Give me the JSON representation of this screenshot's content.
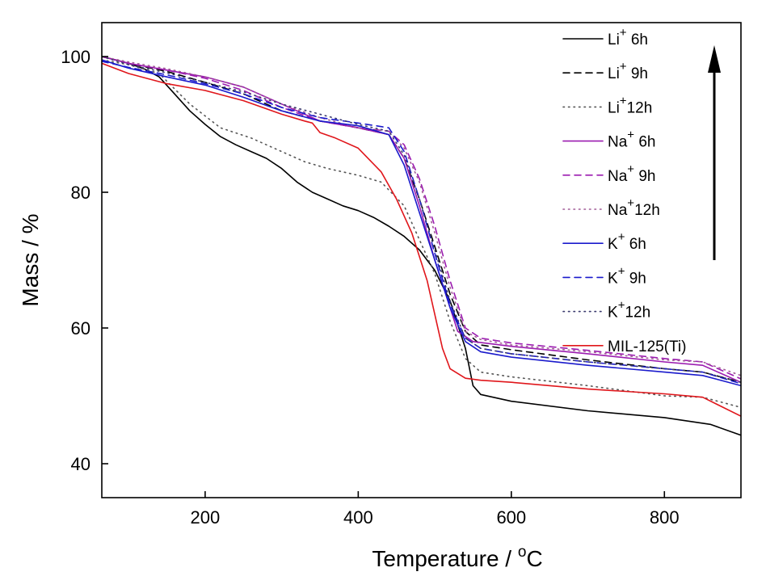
{
  "chart_data": {
    "type": "line",
    "xlabel": {
      "main": "Temperature / ",
      "sup": "o",
      "tail": "C"
    },
    "ylabel": "Mass / %",
    "xlim": [
      65,
      900
    ],
    "ylim": [
      35,
      105
    ],
    "xticks": [
      "200",
      "400",
      "600",
      "800"
    ],
    "yticks": [
      "40",
      "60",
      "80",
      "100"
    ],
    "grid": false,
    "legend_position": "top-right",
    "annotation": "upward arrow beside legend",
    "series": [
      {
        "base": "Li",
        "sup": "+",
        "suffix": "  6h",
        "color": "#000000",
        "dash": "solid",
        "points": [
          [
            65,
            100
          ],
          [
            80,
            99.6
          ],
          [
            100,
            99
          ],
          [
            120,
            98.2
          ],
          [
            140,
            97
          ],
          [
            160,
            94.5
          ],
          [
            180,
            92
          ],
          [
            200,
            90
          ],
          [
            220,
            88.2
          ],
          [
            240,
            87
          ],
          [
            260,
            86
          ],
          [
            280,
            85
          ],
          [
            300,
            83.5
          ],
          [
            320,
            81.5
          ],
          [
            340,
            80
          ],
          [
            360,
            79
          ],
          [
            380,
            78
          ],
          [
            400,
            77.3
          ],
          [
            420,
            76.3
          ],
          [
            440,
            75
          ],
          [
            460,
            73.5
          ],
          [
            480,
            71.5
          ],
          [
            500,
            68.5
          ],
          [
            520,
            64
          ],
          [
            540,
            57
          ],
          [
            550,
            51.5
          ],
          [
            560,
            50.2
          ],
          [
            600,
            49.2
          ],
          [
            700,
            47.8
          ],
          [
            800,
            46.8
          ],
          [
            860,
            45.8
          ],
          [
            900,
            44.2
          ]
        ]
      },
      {
        "base": "Li",
        "sup": "+",
        "suffix": " 9h",
        "color": "#000000",
        "dash": "dashed",
        "points": [
          [
            65,
            100
          ],
          [
            100,
            99
          ],
          [
            150,
            97.8
          ],
          [
            200,
            96.2
          ],
          [
            250,
            94.5
          ],
          [
            300,
            92
          ],
          [
            350,
            90.5
          ],
          [
            400,
            89.5
          ],
          [
            440,
            88.5
          ],
          [
            460,
            85
          ],
          [
            480,
            79
          ],
          [
            500,
            72
          ],
          [
            520,
            65
          ],
          [
            540,
            59.5
          ],
          [
            560,
            57.5
          ],
          [
            600,
            56.8
          ],
          [
            700,
            55.3
          ],
          [
            800,
            54
          ],
          [
            850,
            53.5
          ],
          [
            900,
            52
          ]
        ]
      },
      {
        "base": "Li",
        "sup": "+",
        "suffix": "12h",
        "color": "#555555",
        "dash": "dotted",
        "points": [
          [
            65,
            99.5
          ],
          [
            100,
            98.8
          ],
          [
            140,
            97.5
          ],
          [
            180,
            93
          ],
          [
            220,
            89.5
          ],
          [
            260,
            88
          ],
          [
            300,
            86
          ],
          [
            330,
            84.5
          ],
          [
            360,
            83.5
          ],
          [
            400,
            82.5
          ],
          [
            430,
            81.5
          ],
          [
            460,
            78
          ],
          [
            480,
            73
          ],
          [
            500,
            68
          ],
          [
            520,
            61
          ],
          [
            540,
            55.5
          ],
          [
            560,
            53.5
          ],
          [
            600,
            52.8
          ],
          [
            700,
            51.5
          ],
          [
            800,
            50
          ],
          [
            850,
            49.8
          ],
          [
            900,
            48.3
          ]
        ]
      },
      {
        "base": "Na",
        "sup": "+",
        "suffix": "  6h",
        "color": "#9b1bb0",
        "dash": "solid",
        "points": [
          [
            65,
            100
          ],
          [
            100,
            99
          ],
          [
            150,
            98
          ],
          [
            200,
            97
          ],
          [
            250,
            95.5
          ],
          [
            300,
            93
          ],
          [
            350,
            90.5
          ],
          [
            400,
            89.5
          ],
          [
            440,
            88.5
          ],
          [
            460,
            85
          ],
          [
            480,
            78
          ],
          [
            500,
            70
          ],
          [
            520,
            63
          ],
          [
            530,
            59.5
          ],
          [
            550,
            58
          ],
          [
            600,
            57.3
          ],
          [
            700,
            56.2
          ],
          [
            800,
            55
          ],
          [
            850,
            54.5
          ],
          [
            900,
            52
          ]
        ]
      },
      {
        "base": "Na",
        "sup": "+",
        "suffix": " 9h",
        "color": "#9b1bb0",
        "dash": "dashed",
        "points": [
          [
            65,
            100
          ],
          [
            100,
            99
          ],
          [
            150,
            98
          ],
          [
            200,
            96.8
          ],
          [
            250,
            95
          ],
          [
            300,
            92.5
          ],
          [
            350,
            90.5
          ],
          [
            400,
            89.5
          ],
          [
            440,
            89
          ],
          [
            460,
            87
          ],
          [
            480,
            82
          ],
          [
            500,
            75
          ],
          [
            520,
            67
          ],
          [
            540,
            60
          ],
          [
            560,
            58.5
          ],
          [
            600,
            57.8
          ],
          [
            700,
            56.7
          ],
          [
            800,
            55.5
          ],
          [
            850,
            55
          ],
          [
            900,
            52.5
          ]
        ]
      },
      {
        "base": "Na",
        "sup": "+",
        "suffix": "12h",
        "color": "#a05a96",
        "dash": "dotted",
        "points": [
          [
            65,
            100
          ],
          [
            100,
            99.2
          ],
          [
            150,
            98.2
          ],
          [
            200,
            97
          ],
          [
            250,
            95.5
          ],
          [
            300,
            93
          ],
          [
            350,
            91
          ],
          [
            400,
            89.5
          ],
          [
            440,
            89
          ],
          [
            460,
            86.5
          ],
          [
            480,
            81.5
          ],
          [
            500,
            74
          ],
          [
            520,
            66
          ],
          [
            540,
            59.5
          ],
          [
            560,
            58.3
          ],
          [
            600,
            57.5
          ],
          [
            700,
            56.5
          ],
          [
            800,
            55.3
          ],
          [
            850,
            55
          ],
          [
            900,
            53
          ]
        ]
      },
      {
        "base": "K",
        "sup": "+",
        "suffix": "  6h",
        "color": "#1a1acc",
        "dash": "solid",
        "points": [
          [
            65,
            99.5
          ],
          [
            100,
            98.3
          ],
          [
            150,
            97
          ],
          [
            200,
            95.8
          ],
          [
            250,
            94
          ],
          [
            300,
            92
          ],
          [
            350,
            90.5
          ],
          [
            400,
            89.8
          ],
          [
            440,
            88.5
          ],
          [
            460,
            84
          ],
          [
            480,
            77
          ],
          [
            500,
            70
          ],
          [
            520,
            63
          ],
          [
            540,
            58
          ],
          [
            560,
            56.5
          ],
          [
            600,
            55.7
          ],
          [
            700,
            54.5
          ],
          [
            800,
            53.5
          ],
          [
            850,
            53
          ],
          [
            900,
            51.5
          ]
        ]
      },
      {
        "base": "K",
        "sup": "+",
        "suffix": "  9h",
        "color": "#1a1acc",
        "dash": "dashed",
        "points": [
          [
            65,
            99.3
          ],
          [
            100,
            98.4
          ],
          [
            150,
            97.3
          ],
          [
            200,
            96
          ],
          [
            250,
            94.5
          ],
          [
            300,
            92.5
          ],
          [
            350,
            91
          ],
          [
            400,
            90.2
          ],
          [
            440,
            89.5
          ],
          [
            460,
            86
          ],
          [
            480,
            79
          ],
          [
            500,
            71
          ],
          [
            520,
            63.5
          ],
          [
            540,
            58.5
          ],
          [
            560,
            57
          ],
          [
            600,
            56.2
          ],
          [
            700,
            55
          ],
          [
            800,
            54
          ],
          [
            850,
            53.5
          ],
          [
            900,
            51.8
          ]
        ]
      },
      {
        "base": "K",
        "sup": "+",
        "suffix": "12h",
        "color": "#3a3a6e",
        "dash": "dotted",
        "points": [
          [
            65,
            100
          ],
          [
            100,
            98.8
          ],
          [
            150,
            97.6
          ],
          [
            200,
            96.2
          ],
          [
            250,
            94.8
          ],
          [
            300,
            93
          ],
          [
            350,
            91.5
          ],
          [
            400,
            90
          ],
          [
            440,
            89
          ],
          [
            460,
            85.5
          ],
          [
            480,
            79
          ],
          [
            500,
            71.5
          ],
          [
            520,
            64
          ],
          [
            540,
            58.5
          ],
          [
            560,
            57
          ],
          [
            600,
            56.2
          ],
          [
            700,
            55
          ],
          [
            800,
            54
          ],
          [
            850,
            53.5
          ],
          [
            900,
            52
          ]
        ]
      },
      {
        "base": "MIL-125(Ti)",
        "sup": "",
        "suffix": "",
        "color": "#e0161b",
        "dash": "solid",
        "points": [
          [
            65,
            99
          ],
          [
            100,
            97.5
          ],
          [
            150,
            96
          ],
          [
            200,
            95
          ],
          [
            250,
            93.5
          ],
          [
            300,
            91.5
          ],
          [
            330,
            90.5
          ],
          [
            340,
            90.2
          ],
          [
            350,
            88.8
          ],
          [
            370,
            88
          ],
          [
            400,
            86.5
          ],
          [
            430,
            83
          ],
          [
            450,
            79
          ],
          [
            470,
            74
          ],
          [
            490,
            67
          ],
          [
            500,
            62
          ],
          [
            510,
            57
          ],
          [
            520,
            54
          ],
          [
            540,
            52.6
          ],
          [
            560,
            52.3
          ],
          [
            600,
            52
          ],
          [
            700,
            51
          ],
          [
            800,
            50.3
          ],
          [
            850,
            49.8
          ],
          [
            900,
            47
          ]
        ]
      }
    ]
  }
}
